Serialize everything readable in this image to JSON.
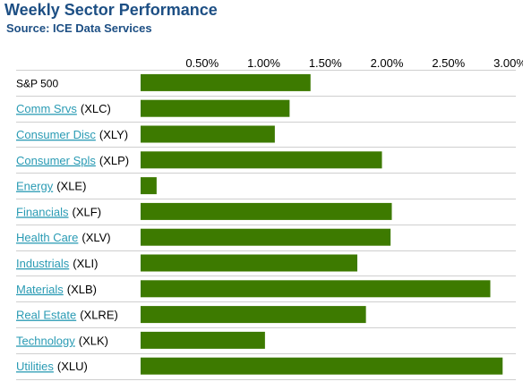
{
  "header": {
    "title": "Weekly Sector Performance",
    "source": "Source: ICE Data Services"
  },
  "colors": {
    "title": "#1d4f84",
    "bar": "#3d7a00",
    "link": "#2a9bb4",
    "rule": "#cfcfcf"
  },
  "chart_data": {
    "type": "bar",
    "orientation": "horizontal",
    "title": "Weekly Sector Performance",
    "subtitle": "Source: ICE Data Services",
    "x_ticks": [
      "0.50%",
      "1.00%",
      "1.50%",
      "2.00%",
      "2.50%",
      "3.00%"
    ],
    "x_tick_values": [
      0.5,
      1.0,
      1.5,
      2.0,
      2.5,
      3.0
    ],
    "xlim": [
      0.0,
      3.0
    ],
    "grid": false,
    "legend": "none",
    "categories": [
      {
        "name": "S&P 500",
        "ticker": "",
        "link": false
      },
      {
        "name": "Comm Srvs",
        "ticker": "(XLC)",
        "link": true
      },
      {
        "name": "Consumer Disc",
        "ticker": "(XLY)",
        "link": true
      },
      {
        "name": "Consumer Spls",
        "ticker": "(XLP)",
        "link": true
      },
      {
        "name": "Energy",
        "ticker": "(XLE)",
        "link": true
      },
      {
        "name": "Financials",
        "ticker": "(XLF)",
        "link": true
      },
      {
        "name": "Health Care",
        "ticker": "(XLV)",
        "link": true
      },
      {
        "name": "Industrials",
        "ticker": "(XLI)",
        "link": true
      },
      {
        "name": "Materials",
        "ticker": "(XLB)",
        "link": true
      },
      {
        "name": "Real Estate",
        "ticker": "(XLRE)",
        "link": true
      },
      {
        "name": "Technology",
        "ticker": "(XLK)",
        "link": true
      },
      {
        "name": "Utilities",
        "ticker": "(XLU)",
        "link": true
      }
    ],
    "series": [
      {
        "values": [
          1.38,
          1.21,
          1.09,
          1.96,
          0.13,
          2.04,
          2.03,
          1.76,
          2.84,
          1.83,
          1.01,
          2.94
        ]
      }
    ]
  }
}
